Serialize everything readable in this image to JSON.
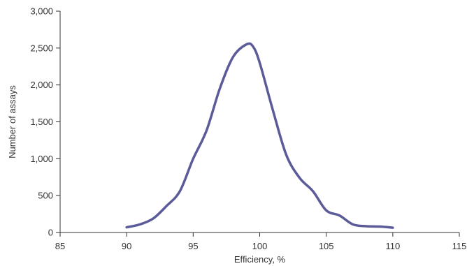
{
  "chart_data": {
    "type": "line",
    "title": "",
    "xlabel": "Efficiency, %",
    "ylabel": "Number of assays",
    "xlim": [
      85,
      115
    ],
    "ylim": [
      0,
      3000
    ],
    "x_ticks": [
      85,
      90,
      95,
      100,
      105,
      110,
      115
    ],
    "y_ticks": [
      0,
      500,
      1000,
      1500,
      2000,
      2500,
      3000
    ],
    "x_tick_labels": [
      "85",
      "90",
      "95",
      "100",
      "105",
      "110",
      "115"
    ],
    "y_tick_labels": [
      "0",
      "500",
      "1,000",
      "1,500",
      "2,000",
      "2,500",
      "3,000"
    ],
    "grid": false,
    "legend": "none",
    "series": [
      {
        "color": "#5b5b9a",
        "x": [
          90,
          91,
          92,
          93,
          94,
          95,
          96,
          97,
          98,
          99,
          99.5,
          100,
          101,
          102,
          103,
          104,
          105,
          106,
          107,
          108,
          109,
          110
        ],
        "y": [
          70,
          110,
          190,
          360,
          560,
          1000,
          1380,
          1950,
          2380,
          2550,
          2520,
          2300,
          1650,
          1050,
          740,
          560,
          300,
          230,
          110,
          85,
          80,
          65
        ]
      }
    ]
  }
}
